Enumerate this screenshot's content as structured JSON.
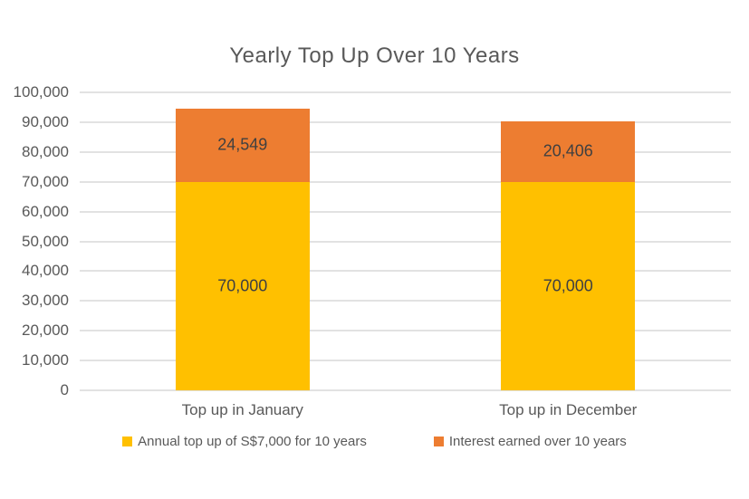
{
  "chart_data": {
    "type": "bar",
    "stacked": true,
    "title": "Yearly Top Up Over 10 Years",
    "categories": [
      "Top up in January",
      "Top up in December"
    ],
    "series": [
      {
        "name": "Annual top up of S$7,000 for 10 years",
        "color": "#FFC000",
        "values": [
          70000,
          70000
        ],
        "data_labels": [
          "70,000",
          "70,000"
        ]
      },
      {
        "name": "Interest earned over 10 years",
        "color": "#ED7D31",
        "values": [
          24549,
          20406
        ],
        "data_labels": [
          "24,549",
          "20,406"
        ]
      }
    ],
    "ylim": [
      0,
      100000
    ],
    "ytick_step": 10000,
    "ytick_labels": [
      "100,000",
      "90,000",
      "80,000",
      "70,000",
      "60,000",
      "50,000",
      "40,000",
      "30,000",
      "20,000",
      "10,000",
      "0"
    ],
    "grid": true,
    "legend_position": "bottom"
  },
  "colors": {
    "series_topup": "#FFC000",
    "series_interest": "#ED7D31",
    "gridline": "#e2e2e2",
    "title_text": "#595959",
    "axis_text": "#595959",
    "data_label_text": "#404040",
    "background": "#ffffff"
  }
}
